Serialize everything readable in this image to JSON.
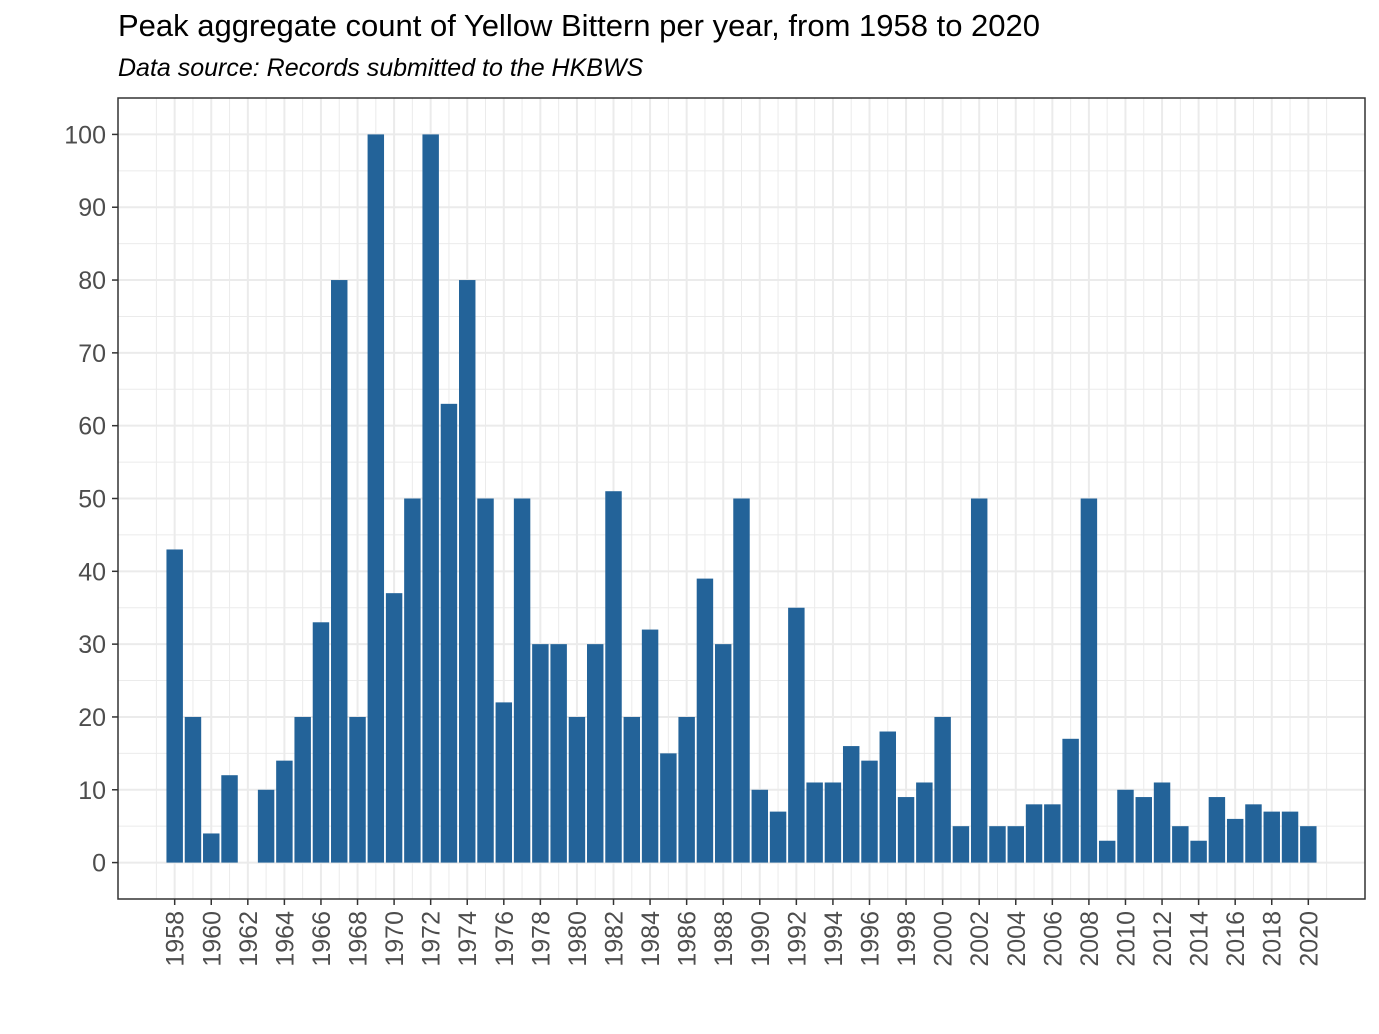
{
  "chart_data": {
    "type": "bar",
    "title": "Peak aggregate count of Yellow Bittern per year, from 1958 to 2020",
    "subtitle": "Data source: Records submitted to the HKBWS",
    "xlabel": "",
    "ylabel": "",
    "x": [
      1958,
      1959,
      1960,
      1961,
      1962,
      1963,
      1964,
      1965,
      1966,
      1967,
      1968,
      1969,
      1970,
      1971,
      1972,
      1973,
      1974,
      1975,
      1976,
      1977,
      1978,
      1979,
      1980,
      1981,
      1982,
      1983,
      1984,
      1985,
      1986,
      1987,
      1988,
      1989,
      1990,
      1991,
      1992,
      1993,
      1994,
      1995,
      1996,
      1997,
      1998,
      1999,
      2000,
      2001,
      2002,
      2003,
      2004,
      2005,
      2006,
      2007,
      2008,
      2009,
      2010,
      2011,
      2012,
      2013,
      2014,
      2015,
      2016,
      2017,
      2018,
      2019,
      2020
    ],
    "values": [
      43,
      20,
      4,
      12,
      null,
      10,
      14,
      20,
      33,
      80,
      20,
      100,
      37,
      50,
      100,
      63,
      80,
      50,
      22,
      50,
      30,
      30,
      20,
      30,
      51,
      20,
      32,
      15,
      20,
      39,
      30,
      50,
      10,
      7,
      35,
      11,
      11,
      16,
      14,
      18,
      9,
      11,
      20,
      5,
      50,
      5,
      5,
      8,
      8,
      17,
      50,
      3,
      10,
      9,
      11,
      5,
      3,
      9,
      6,
      8,
      7,
      7,
      5
    ],
    "xticks": [
      "1958",
      "1960",
      "1962",
      "1964",
      "1966",
      "1968",
      "1970",
      "1972",
      "1974",
      "1976",
      "1978",
      "1980",
      "1982",
      "1984",
      "1986",
      "1988",
      "1990",
      "1992",
      "1994",
      "1996",
      "1998",
      "2000",
      "2002",
      "2004",
      "2006",
      "2008",
      "2010",
      "2012",
      "2014",
      "2016",
      "2018",
      "2020"
    ],
    "yticks": [
      "0",
      "10",
      "20",
      "30",
      "40",
      "50",
      "60",
      "70",
      "80",
      "90",
      "100"
    ],
    "ylim": [
      -5,
      105
    ],
    "xlim": [
      1954.9,
      2023.1
    ],
    "bar_color": "#236399",
    "grid": true,
    "panel_border_color": "#333333",
    "grid_color": "#ebebeb"
  }
}
